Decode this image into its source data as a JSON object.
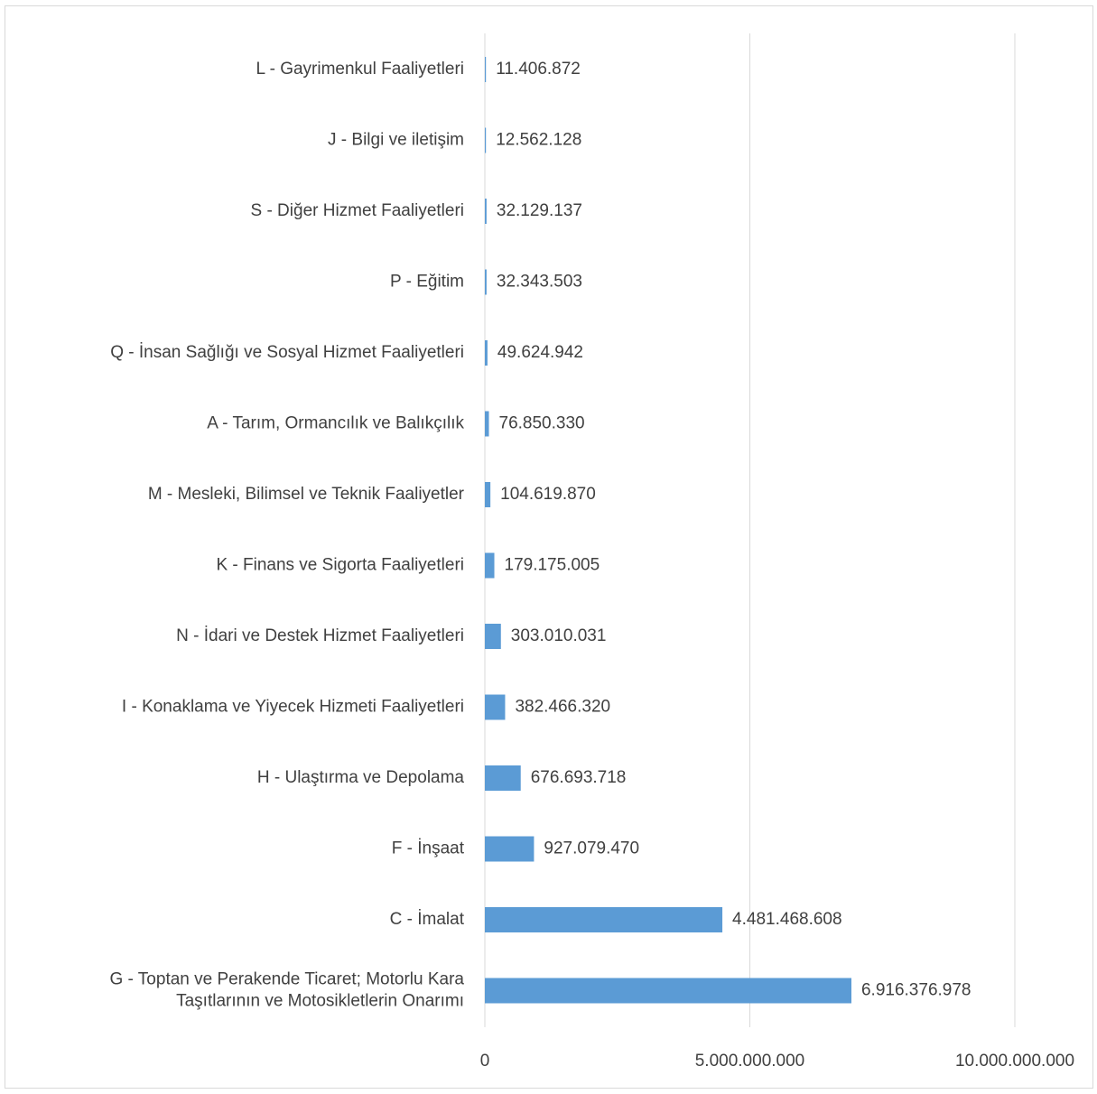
{
  "chart_data": {
    "type": "bar",
    "orientation": "horizontal",
    "title": "",
    "xlabel": "",
    "ylabel": "",
    "xlim": [
      0,
      10000000000
    ],
    "x_ticks": [
      {
        "value": 0,
        "label": "0"
      },
      {
        "value": 5000000000,
        "label": "5.000.000.000"
      },
      {
        "value": 10000000000,
        "label": "10.000.000.000"
      }
    ],
    "grid": "vertical",
    "legend": "none",
    "bar_color": "#5b9bd5",
    "categories": [
      {
        "lines": [
          "L - Gayrimenkul Faaliyetleri"
        ],
        "value": 11406872,
        "label": "11.406.872"
      },
      {
        "lines": [
          "J - Bilgi ve iletişim"
        ],
        "value": 12562128,
        "label": "12.562.128"
      },
      {
        "lines": [
          "S - Diğer Hizmet Faaliyetleri"
        ],
        "value": 32129137,
        "label": "32.129.137"
      },
      {
        "lines": [
          "P - Eğitim"
        ],
        "value": 32343503,
        "label": "32.343.503"
      },
      {
        "lines": [
          "Q - İnsan Sağlığı ve Sosyal Hizmet Faaliyetleri"
        ],
        "value": 49624942,
        "label": "49.624.942"
      },
      {
        "lines": [
          "A - Tarım, Ormancılık ve Balıkçılık"
        ],
        "value": 76850330,
        "label": "76.850.330"
      },
      {
        "lines": [
          "M - Mesleki, Bilimsel ve Teknik Faaliyetler"
        ],
        "value": 104619870,
        "label": "104.619.870"
      },
      {
        "lines": [
          "K - Finans ve Sigorta Faaliyetleri"
        ],
        "value": 179175005,
        "label": "179.175.005"
      },
      {
        "lines": [
          "N - İdari ve Destek Hizmet Faaliyetleri"
        ],
        "value": 303010031,
        "label": "303.010.031"
      },
      {
        "lines": [
          "I - Konaklama ve Yiyecek Hizmeti Faaliyetleri"
        ],
        "value": 382466320,
        "label": "382.466.320"
      },
      {
        "lines": [
          "H - Ulaştırma ve Depolama"
        ],
        "value": 676693718,
        "label": "676.693.718"
      },
      {
        "lines": [
          "F - İnşaat"
        ],
        "value": 927079470,
        "label": "927.079.470"
      },
      {
        "lines": [
          "C - İmalat"
        ],
        "value": 4481468608,
        "label": "4.481.468.608"
      },
      {
        "lines": [
          "G - Toptan ve Perakende Ticaret; Motorlu Kara",
          "Taşıtlarının ve Motosikletlerin Onarımı"
        ],
        "value": 6916376978,
        "label": "6.916.376.978"
      }
    ]
  }
}
